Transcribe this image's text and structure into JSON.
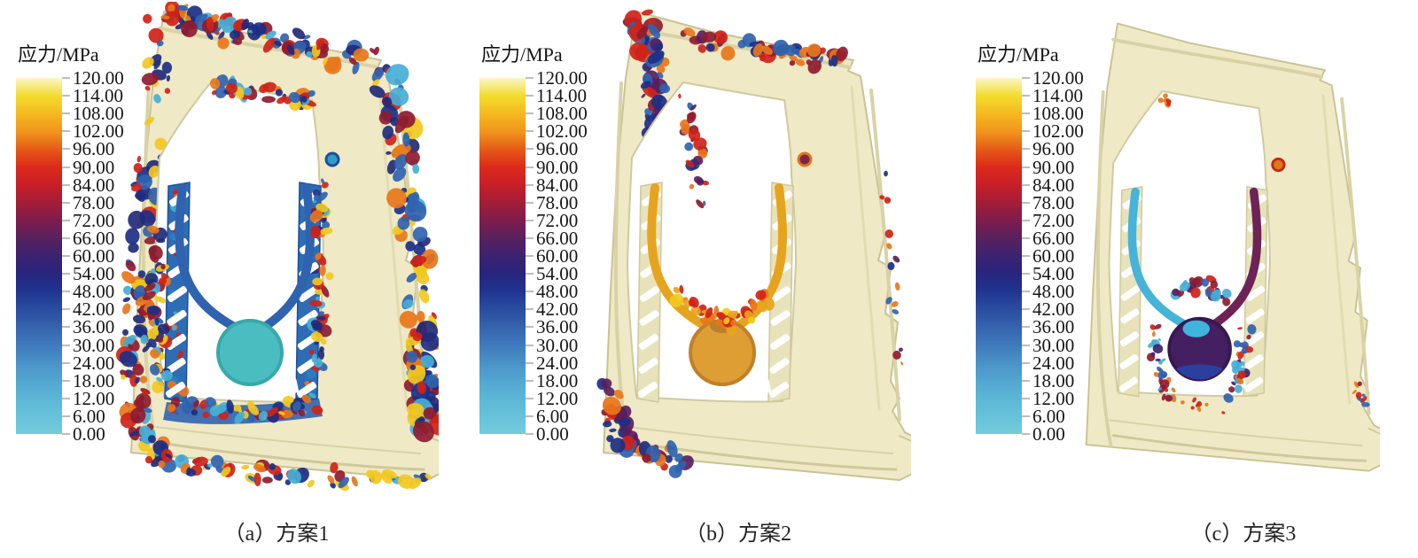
{
  "figure": {
    "background": "#ffffff"
  },
  "colorbar": {
    "label": "应力/MPa",
    "min": 0,
    "max": 120,
    "step": 6,
    "ticks": [
      "120.00",
      "114.00",
      "108.00",
      "102.00",
      "96.00",
      "90.00",
      "84.00",
      "78.00",
      "72.00",
      "66.00",
      "60.00",
      "54.00",
      "48.00",
      "42.00",
      "36.00",
      "30.00",
      "24.00",
      "18.00",
      "12.00",
      "6.00",
      "0.00"
    ],
    "gradient": [
      {
        "value": 0,
        "color": "#74ccda"
      },
      {
        "value": 6,
        "color": "#66c2da"
      },
      {
        "value": 12,
        "color": "#5cb6d6"
      },
      {
        "value": 18,
        "color": "#52a6d0"
      },
      {
        "value": 24,
        "color": "#4a92c8"
      },
      {
        "value": 30,
        "color": "#3f7abc"
      },
      {
        "value": 36,
        "color": "#3563ae"
      },
      {
        "value": 42,
        "color": "#2a4da0"
      },
      {
        "value": 48,
        "color": "#1f3590"
      },
      {
        "value": 54,
        "color": "#27257e"
      },
      {
        "value": 60,
        "color": "#3c2270"
      },
      {
        "value": 66,
        "color": "#58215e"
      },
      {
        "value": 72,
        "color": "#7d1d4c"
      },
      {
        "value": 78,
        "color": "#a41d36"
      },
      {
        "value": 84,
        "color": "#c81f28"
      },
      {
        "value": 90,
        "color": "#dc2a1a"
      },
      {
        "value": 96,
        "color": "#e65a17"
      },
      {
        "value": 102,
        "color": "#f1961c"
      },
      {
        "value": 108,
        "color": "#f5b91f"
      },
      {
        "value": 114,
        "color": "#f2dc2e"
      },
      {
        "value": 120,
        "color": "#fbf6c8"
      }
    ]
  },
  "panels": [
    {
      "id": "a",
      "caption": "（a）方案1",
      "scheme": "方案1",
      "sprue_color": "#49bdbf",
      "sprue_rim": "#3aa8aa",
      "runner_left": "#2f63b0",
      "runner_right": "#2f63b0",
      "rib_fill": "#2e6cb4",
      "rib_edge": "#1d4f9e",
      "grommet_fill": "#2f9ec6",
      "grommet_ring": "#1d4f9e",
      "bottom_band": "#2f63b0",
      "stress_level": "heavy",
      "stress_palette": [
        "#cf2318",
        "#8f1b30",
        "#e8761a",
        "#2f63b0",
        "#1d2f86",
        "#222a78",
        "#45aed6",
        "#f2c81e"
      ]
    },
    {
      "id": "b",
      "caption": "（b）方案2",
      "scheme": "方案2",
      "sprue_color": "#dd9e33",
      "sprue_rim": "#c08028",
      "sprue_top_blob": "#b97f2a",
      "runner_left": "#e6a41e",
      "runner_right": "#e6a41e",
      "rib_fill": "#e7e2ba",
      "rib_edge": "#cfc89a",
      "grommet_fill": "#7c2450",
      "grommet_ring": "#e07818",
      "stress_level": "moderate",
      "stress_palette": [
        "#cf2318",
        "#8f1b30",
        "#e8761a",
        "#5a1e5e",
        "#2f63b0",
        "#1d2f86"
      ]
    },
    {
      "id": "c",
      "caption": "（c）方案3",
      "scheme": "方案3",
      "sprue_color": "#441f62",
      "sprue_rim": "#37184f",
      "sprue_patch_top": "#3fb4dc",
      "sprue_patch_bottom": "#2b3f9e",
      "runner_left": "#45b4d8",
      "runner_right": "#6e2356",
      "rib_fill": "#e7e2ba",
      "rib_edge": "#cfc89a",
      "grommet_fill": "#e07818",
      "grommet_ring": "#c22818",
      "stress_level": "light",
      "stress_palette": [
        "#cf2318",
        "#8f1b30",
        "#e8761a",
        "#3c2270",
        "#2f63b0",
        "#45aed6"
      ]
    }
  ],
  "chart_data": {
    "type": "heatmap",
    "colorbar": {
      "label": "应力/MPa",
      "min": 0,
      "max": 120,
      "step": 6,
      "tick_values": [
        120,
        114,
        108,
        102,
        96,
        90,
        84,
        78,
        72,
        66,
        60,
        54,
        48,
        42,
        36,
        30,
        24,
        18,
        12,
        6,
        0
      ]
    },
    "panels": [
      {
        "label": "（a）方案1",
        "sprue_stress_MPa_approx": 6,
        "runner_stress_MPa_approx": 42,
        "notes": "frame edges heavily mottled with 0-120 MPa hotspots (red/blue); runners and ribs blue ~30-54 MPa; sprue disc cyan ~3-8 MPa"
      },
      {
        "label": "（b）方案2",
        "sprue_stress_MPa_approx": 105,
        "runner_stress_MPa_approx": 105,
        "notes": "body mostly pale yellow ~115-120 MPa; stress concentrations at top-left corner and bottom-left corner; sprue disc orange ~102-108 MPa"
      },
      {
        "label": "（c）方案3",
        "sprue_stress_MPa_approx": 64,
        "runner_stress_MPa_approx": 18,
        "notes": "cleanest body; localized spots near rib roots; sprue disc dark purple ~60-66 MPa with blue ~42-48 MPa rim and cyan ~6-12 MPa patch"
      }
    ]
  }
}
